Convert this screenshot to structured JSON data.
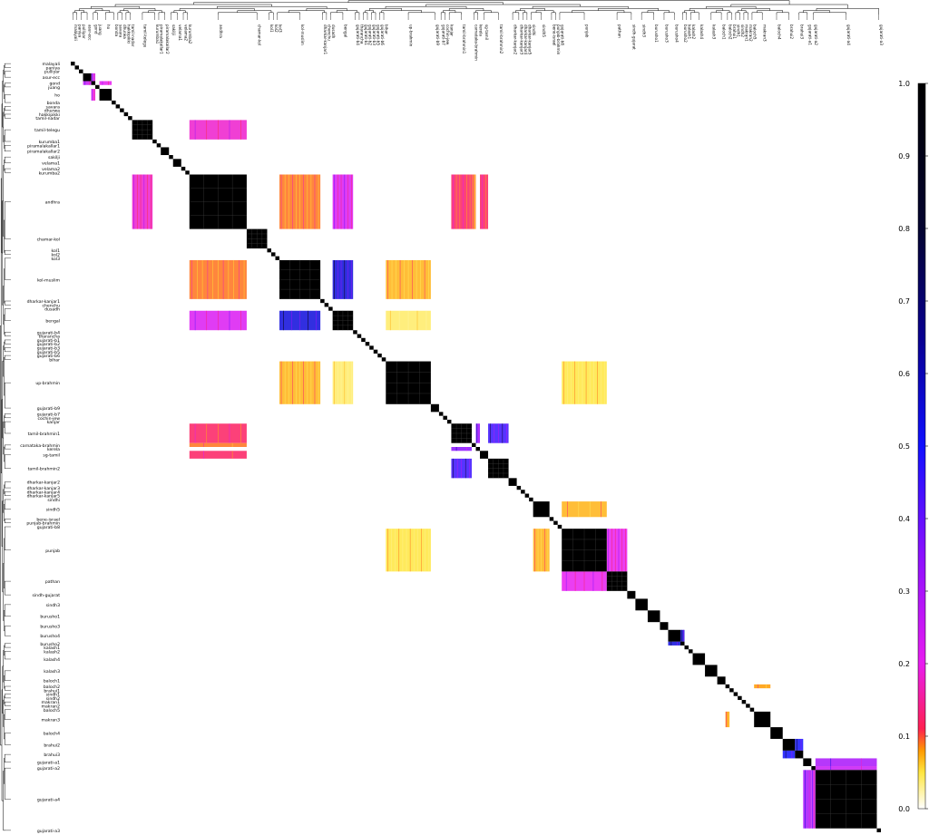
{
  "chart_data": {
    "type": "heatmap",
    "title": "",
    "xlabel": "",
    "ylabel": "",
    "colorbar": {
      "range": [
        0.0,
        1.0
      ],
      "ticks": [
        "0.0",
        "0.1",
        "0.2",
        "0.3",
        "0.4",
        "0.5",
        "0.6",
        "0.7",
        "0.8",
        "0.9",
        "1.0"
      ],
      "colormap": "gnuplot2_r",
      "stops": [
        {
          "v": 0.0,
          "c": "#ffffff"
        },
        {
          "v": 0.05,
          "c": "#ffe640"
        },
        {
          "v": 0.08,
          "c": "#ff9a00"
        },
        {
          "v": 0.11,
          "c": "#ff2050"
        },
        {
          "v": 0.2,
          "c": "#e81cf0"
        },
        {
          "v": 0.35,
          "c": "#8a10ff"
        },
        {
          "v": 0.5,
          "c": "#1010ff"
        },
        {
          "v": 0.65,
          "c": "#080090"
        },
        {
          "v": 0.8,
          "c": "#040430"
        },
        {
          "v": 1.0,
          "c": "#000000"
        }
      ]
    },
    "row_labels": [
      "malayali",
      "paniya",
      "pulliyar",
      "asur-ecc",
      "gond",
      "juang",
      "ho",
      "bonda",
      "savara",
      "dhurwa",
      "hakkipikki",
      "tamil-nadar",
      "tamil-telegu",
      "kurumba1",
      "piramalakallar1",
      "piramalakallar2",
      "sakilji",
      "velama1",
      "velama2",
      "kurumba2",
      "andhra",
      "chamar-kol",
      "kol1",
      "kol2",
      "kol3",
      "kol-muslim",
      "dharkar-kanjar1",
      "chenchu",
      "dusadh",
      "bengal",
      "gujarati-b4",
      "tharancha",
      "gujarati-b1",
      "gujarati-b2",
      "gujarati-b3",
      "gujarati-b5",
      "gujarati-b6",
      "bihar",
      "up-brahmin",
      "gujarati-b9",
      "gujarati-b7",
      "cochin-jew",
      "kanjar",
      "tamil-brahmin1",
      "carnataka-brahmin",
      "kerela",
      "sg-tamil",
      "tamil-brahmin2",
      "dharkar-kanjar2",
      "dharkar-kanjar3",
      "dharkar-kanjar4",
      "dharkar-kanjar5",
      "sindhi",
      "sindh5",
      "bene-israel",
      "punjab-brahmin",
      "gujarati-b8",
      "punjab",
      "pathan",
      "sindh-gujarat",
      "sindh3",
      "burusho1",
      "burusho3",
      "burusho4",
      "burusho2",
      "kalash1",
      "kalash2",
      "kalash4",
      "kalash3",
      "baloch1",
      "baloch2",
      "brahui1",
      "sindh1",
      "sindh2",
      "makran1",
      "makran2",
      "baloch5",
      "makran3",
      "baloch4",
      "brahui2",
      "brahui3",
      "gujarati-a1",
      "gujarati-a2",
      "gujarati-a4",
      "gujarati-a3"
    ],
    "blocks": [
      {
        "label": "malayali",
        "size": 1
      },
      {
        "label": "paniya",
        "size": 1
      },
      {
        "label": "pulliyar",
        "size": 1
      },
      {
        "label": "asur-ecc",
        "size": 2
      },
      {
        "label": "gond",
        "size": 1
      },
      {
        "label": "juang",
        "size": 1
      },
      {
        "label": "ho",
        "size": 3
      },
      {
        "label": "bonda",
        "size": 1
      },
      {
        "label": "savara",
        "size": 1
      },
      {
        "label": "dhurwa",
        "size": 1
      },
      {
        "label": "hakkipikki",
        "size": 1
      },
      {
        "label": "tamil-nadar",
        "size": 1
      },
      {
        "label": "tamil-telegu",
        "size": 5
      },
      {
        "label": "kurumba1",
        "size": 1
      },
      {
        "label": "piramalakallar1",
        "size": 1
      },
      {
        "label": "piramalakallar2",
        "size": 2
      },
      {
        "label": "sakilji",
        "size": 1
      },
      {
        "label": "velama1",
        "size": 2
      },
      {
        "label": "velama2",
        "size": 1
      },
      {
        "label": "kurumba2",
        "size": 1
      },
      {
        "label": "andhra",
        "size": 14
      },
      {
        "label": "chamar-kol",
        "size": 5
      },
      {
        "label": "kol1",
        "size": 1
      },
      {
        "label": "kol2",
        "size": 1
      },
      {
        "label": "kol3",
        "size": 1
      },
      {
        "label": "kol-muslim",
        "size": 10
      },
      {
        "label": "dharkar-kanjar1",
        "size": 1
      },
      {
        "label": "chenchu",
        "size": 1
      },
      {
        "label": "dusadh",
        "size": 1
      },
      {
        "label": "bengal",
        "size": 5
      },
      {
        "label": "gujarati-b4",
        "size": 1
      },
      {
        "label": "tharancha",
        "size": 1
      },
      {
        "label": "gujarati-b1",
        "size": 1
      },
      {
        "label": "gujarati-b2",
        "size": 1
      },
      {
        "label": "gujarati-b3",
        "size": 1
      },
      {
        "label": "gujarati-b5",
        "size": 1
      },
      {
        "label": "gujarati-b6",
        "size": 1
      },
      {
        "label": "bihar",
        "size": 1
      },
      {
        "label": "up-brahmin",
        "size": 11
      },
      {
        "label": "gujarati-b9",
        "size": 2
      },
      {
        "label": "gujarati-b7",
        "size": 1
      },
      {
        "label": "cochin-jew",
        "size": 1
      },
      {
        "label": "kanjar",
        "size": 1
      },
      {
        "label": "tamil-brahmin1",
        "size": 5
      },
      {
        "label": "carnataka-brahmin",
        "size": 1
      },
      {
        "label": "kerela",
        "size": 1
      },
      {
        "label": "sg-tamil",
        "size": 2
      },
      {
        "label": "tamil-brahmin2",
        "size": 5
      },
      {
        "label": "dharkar-kanjar2",
        "size": 2
      },
      {
        "label": "dharkar-kanjar3",
        "size": 1
      },
      {
        "label": "dharkar-kanjar4",
        "size": 1
      },
      {
        "label": "dharkar-kanjar5",
        "size": 1
      },
      {
        "label": "sindhi",
        "size": 1
      },
      {
        "label": "sindh5",
        "size": 4
      },
      {
        "label": "bene-israel",
        "size": 1
      },
      {
        "label": "punjab-brahmin",
        "size": 1
      },
      {
        "label": "gujarati-b8",
        "size": 1
      },
      {
        "label": "punjab",
        "size": 11
      },
      {
        "label": "pathan",
        "size": 5
      },
      {
        "label": "sindh-gujarat",
        "size": 2
      },
      {
        "label": "sindh3",
        "size": 3
      },
      {
        "label": "burusho1",
        "size": 3
      },
      {
        "label": "burusho3",
        "size": 2
      },
      {
        "label": "burusho4",
        "size": 3
      },
      {
        "label": "burusho2",
        "size": 1
      },
      {
        "label": "kalash1",
        "size": 1
      },
      {
        "label": "kalash2",
        "size": 1
      },
      {
        "label": "kalash4",
        "size": 3
      },
      {
        "label": "kalash3",
        "size": 3
      },
      {
        "label": "baloch1",
        "size": 2
      },
      {
        "label": "baloch2",
        "size": 1
      },
      {
        "label": "brahui1",
        "size": 1
      },
      {
        "label": "sindh1",
        "size": 1
      },
      {
        "label": "sindh2",
        "size": 1
      },
      {
        "label": "makran1",
        "size": 1
      },
      {
        "label": "makran2",
        "size": 1
      },
      {
        "label": "baloch5",
        "size": 1
      },
      {
        "label": "makran3",
        "size": 4
      },
      {
        "label": "baloch4",
        "size": 3
      },
      {
        "label": "brahui2",
        "size": 3
      },
      {
        "label": "brahui3",
        "size": 2
      },
      {
        "label": "gujarati-a1",
        "size": 2
      },
      {
        "label": "gujarati-a2",
        "size": 1
      },
      {
        "label": "gujarati-a4",
        "size": 15
      },
      {
        "label": "gujarati-a3",
        "size": 1
      }
    ],
    "cross_blocks": [
      {
        "a": "tamil-telegu",
        "b": "andhra",
        "value": 0.18
      },
      {
        "a": "andhra",
        "b": "tamil-brahmin1",
        "value": 0.12
      },
      {
        "a": "andhra",
        "b": "kol-muslim",
        "value": 0.09
      },
      {
        "a": "andhra",
        "b": "bengal",
        "value": 0.22
      },
      {
        "a": "kol-muslim",
        "b": "bengal",
        "value": 0.55
      },
      {
        "a": "kol-muslim",
        "b": "up-brahmin",
        "value": 0.07
      },
      {
        "a": "bengal",
        "b": "up-brahmin",
        "value": 0.04
      },
      {
        "a": "up-brahmin",
        "b": "punjab",
        "value": 0.05
      },
      {
        "a": "tamil-brahmin1",
        "b": "tamil-brahmin2",
        "value": 0.45
      },
      {
        "a": "tamil-brahmin1",
        "b": "kerela",
        "value": 0.35
      },
      {
        "a": "carnataka-brahmin",
        "b": "andhra",
        "value": 0.09
      },
      {
        "a": "sg-tamil",
        "b": "andhra",
        "value": 0.12
      },
      {
        "a": "sindh5",
        "b": "punjab",
        "value": 0.07
      },
      {
        "a": "punjab",
        "b": "pathan",
        "value": 0.2
      },
      {
        "a": "burusho4",
        "b": "burusho2",
        "value": 0.55
      },
      {
        "a": "brahui2",
        "b": "brahui3",
        "value": 0.5
      },
      {
        "a": "gujarati-a1",
        "b": "gujarati-a4",
        "value": 0.3
      },
      {
        "a": "gujarati-a2",
        "b": "gujarati-a4",
        "value": 0.25
      },
      {
        "a": "baloch2",
        "b": "makran3",
        "value": 0.08
      },
      {
        "a": "asur-ecc",
        "b": "gond",
        "value": 0.25
      },
      {
        "a": "ho",
        "b": "gond",
        "value": 0.2
      }
    ],
    "column_labels": [
      "malayali",
      "paniya",
      "pulliyar",
      "asur-ecc",
      "gond",
      "juang",
      "ho",
      "bonda",
      "savara",
      "dhurwa",
      "hakkipikki",
      "tamil-nadar",
      "tamil-telegu",
      "kurumba1",
      "piramalakallar1",
      "piramalakallar2",
      "sakilji",
      "velama1",
      "velama2",
      "kurumba2",
      "andhra",
      "chamar-kol",
      "kol1",
      "kol2",
      "kol3",
      "kol-muslim",
      "dharkar-kanjar1",
      "chenchu",
      "dusadh",
      "bengal",
      "gujarati-b4",
      "tharancha",
      "gujarati-b1",
      "gujarati-b2",
      "gujarati-b3",
      "gujarati-b5",
      "gujarati-b6",
      "bihar",
      "up-brahmin",
      "gujarati-b9",
      "gujarati-b7",
      "cochin-jew",
      "kanjar",
      "tamil-brahmin1",
      "carnataka-brahmin",
      "kerela",
      "sg-tamil",
      "tamil-brahmin2",
      "dharkar-kanjar2",
      "dharkar-kanjar3",
      "dharkar-kanjar4",
      "dharkar-kanjar5",
      "sindhi",
      "sindh5",
      "bene-israel",
      "punjab-brahmin",
      "gujarati-b8",
      "punjab",
      "pathan",
      "sindh-gujarat",
      "sindh3",
      "burusho1",
      "burusho3",
      "burusho4",
      "burusho2",
      "kalash1",
      "kalash2",
      "kalash4",
      "kalash3",
      "baloch1",
      "baloch2",
      "brahui1",
      "sindh1",
      "sindh2",
      "makran1",
      "makran2",
      "baloch5",
      "makran3",
      "baloch4",
      "brahui2",
      "brahui3",
      "gujarati-a1",
      "gujarati-a2",
      "gujarati-a4",
      "gujarati-a3"
    ],
    "grid": false
  }
}
